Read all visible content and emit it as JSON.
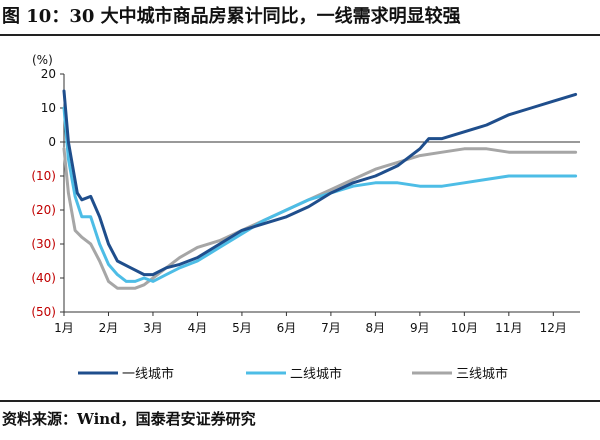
{
  "title": "图 10：30 大中城市商品房累计同比，一线需求明显较强",
  "source": "资料来源：Wind，国泰君安证券研究",
  "chart_data": {
    "type": "line",
    "unit_label": "(%)",
    "ylim": [
      -50,
      20
    ],
    "yticks": [
      20,
      10,
      0,
      -10,
      -20,
      -30,
      -40,
      -50
    ],
    "ytick_labels": [
      "20",
      "10",
      "0",
      "(10)",
      "(20)",
      "(30)",
      "(40)",
      "(50)"
    ],
    "negative_label_color": "#c00000",
    "positive_label_color": "#111111",
    "xlim": [
      1,
      12.6
    ],
    "xticks": [
      1,
      2,
      3,
      4,
      5,
      6,
      7,
      8,
      9,
      10,
      11,
      12
    ],
    "xtick_labels": [
      "1月",
      "2月",
      "3月",
      "4月",
      "5月",
      "6月",
      "7月",
      "8月",
      "9月",
      "10月",
      "11月",
      "12月"
    ],
    "grid": false,
    "legend_position": "bottom",
    "series": [
      {
        "name": "一线城市",
        "color": "#1f4e8c",
        "x": [
          1.0,
          1.1,
          1.3,
          1.4,
          1.6,
          1.8,
          2.0,
          2.2,
          2.5,
          2.8,
          3.0,
          3.3,
          3.6,
          4.0,
          4.5,
          5.0,
          5.5,
          6.0,
          6.5,
          7.0,
          7.5,
          8.0,
          8.5,
          9.0,
          9.2,
          9.5,
          10.0,
          10.5,
          11.0,
          11.5,
          12.0,
          12.5
        ],
        "y": [
          15,
          0,
          -15,
          -17,
          -16,
          -22,
          -30,
          -35,
          -37,
          -39,
          -39,
          -37,
          -36,
          -34,
          -30,
          -26,
          -24,
          -22,
          -19,
          -15,
          -12,
          -10,
          -7,
          -2,
          1,
          1,
          3,
          5,
          8,
          10,
          12,
          14
        ]
      },
      {
        "name": "二线城市",
        "color": "#4dbde6",
        "x": [
          1.0,
          1.1,
          1.25,
          1.4,
          1.6,
          1.8,
          2.0,
          2.2,
          2.4,
          2.6,
          2.8,
          3.0,
          3.3,
          3.6,
          4.0,
          4.5,
          5.0,
          5.5,
          6.0,
          6.5,
          7.0,
          7.5,
          8.0,
          8.5,
          9.0,
          9.5,
          10.0,
          10.5,
          11.0,
          11.5,
          12.0,
          12.5
        ],
        "y": [
          10,
          -5,
          -16,
          -22,
          -22,
          -30,
          -36,
          -39,
          -41,
          -41,
          -40,
          -41,
          -39,
          -37,
          -35,
          -31,
          -27,
          -23,
          -20,
          -17,
          -15,
          -13,
          -12,
          -12,
          -13,
          -13,
          -12,
          -11,
          -10,
          -10,
          -10,
          -10
        ]
      },
      {
        "name": "三线城市",
        "color": "#a6a6a6",
        "x": [
          1.0,
          1.1,
          1.25,
          1.4,
          1.6,
          1.8,
          2.0,
          2.2,
          2.4,
          2.6,
          2.8,
          3.0,
          3.3,
          3.6,
          4.0,
          4.5,
          5.0,
          5.5,
          6.0,
          6.5,
          7.0,
          7.5,
          8.0,
          8.5,
          9.0,
          9.5,
          10.0,
          10.5,
          11.0,
          11.5,
          12.0,
          12.5
        ],
        "y": [
          -2,
          -15,
          -26,
          -28,
          -30,
          -35,
          -41,
          -43,
          -43,
          -43,
          -42,
          -40,
          -37,
          -34,
          -31,
          -29,
          -26,
          -23,
          -20,
          -17,
          -14,
          -11,
          -8,
          -6,
          -4,
          -3,
          -2,
          -2,
          -3,
          -3,
          -3,
          -3
        ]
      }
    ]
  }
}
